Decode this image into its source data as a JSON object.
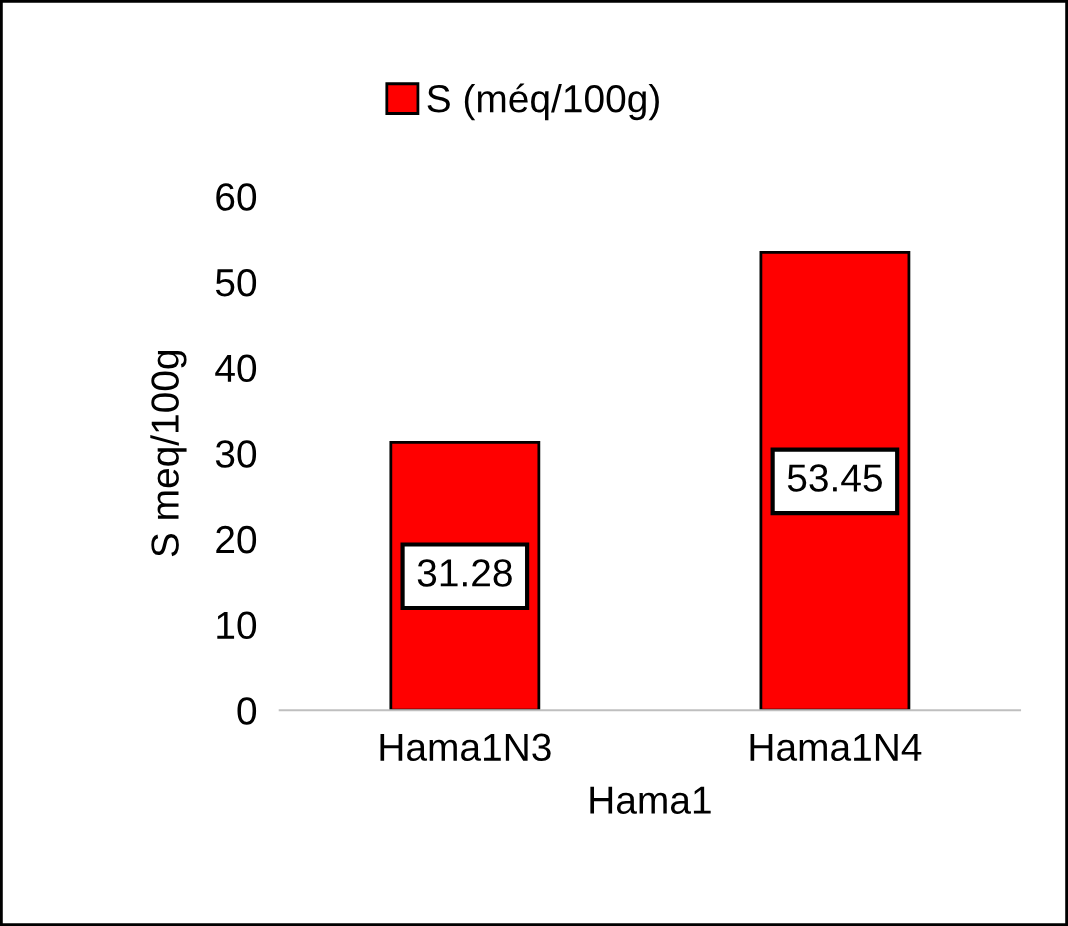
{
  "chart_data": {
    "type": "bar",
    "xlabel": "Hama1",
    "ylabel": "S meq/100g",
    "categories": [
      "Hama1N3",
      "Hama1N4"
    ],
    "series": [
      {
        "name": "S (méq/100g)",
        "color": "#ff0000",
        "values": [
          31.28,
          53.45
        ]
      }
    ],
    "ylim": [
      0,
      60
    ],
    "yticks": [
      0,
      10,
      20,
      30,
      40,
      50,
      60
    ],
    "grid": false,
    "legend": "top",
    "data_labels": true
  }
}
